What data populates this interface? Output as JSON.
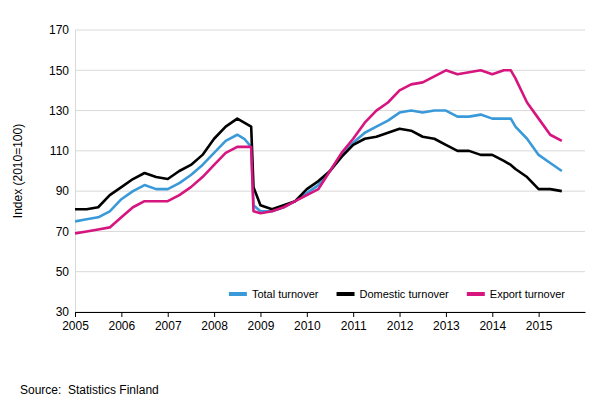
{
  "chart_data": {
    "type": "line",
    "y_label": "Index (2010=100)",
    "annotations": [
      "Source:  Statistics Finland"
    ],
    "x": [
      2005,
      2005.25,
      2005.5,
      2005.75,
      2006,
      2006.25,
      2006.5,
      2006.75,
      2007,
      2007.25,
      2007.5,
      2007.75,
      2008,
      2008.25,
      2008.5,
      2008.65,
      2008.8,
      2008.85,
      2009,
      2009.25,
      2009.5,
      2009.75,
      2010,
      2010.25,
      2010.5,
      2010.75,
      2011,
      2011.25,
      2011.5,
      2011.75,
      2012,
      2012.25,
      2012.5,
      2012.75,
      2013,
      2013.25,
      2013.5,
      2013.75,
      2014,
      2014.25,
      2014.4,
      2014.5,
      2014.75,
      2015,
      2015.25,
      2015.5
    ],
    "series": [
      {
        "name": "Total turnover",
        "color": "#3a9ad9",
        "values": [
          75,
          76,
          77,
          80,
          86,
          90,
          93,
          91,
          91,
          94,
          98,
          103,
          109,
          115,
          118,
          116,
          112,
          83,
          80,
          80,
          82,
          85,
          89,
          93,
          100,
          108,
          114,
          119,
          122,
          125,
          129,
          130,
          129,
          130,
          130,
          127,
          127,
          128,
          126,
          126,
          126,
          122,
          116,
          108,
          104,
          100
        ]
      },
      {
        "name": "Domestic turnover",
        "color": "#000000",
        "values": [
          81,
          81,
          82,
          88,
          92,
          96,
          99,
          97,
          96,
          100,
          103,
          108,
          116,
          122,
          126,
          124,
          122,
          92,
          83,
          81,
          83,
          85,
          91,
          95,
          100,
          107,
          113,
          116,
          117,
          119,
          121,
          120,
          117,
          116,
          113,
          110,
          110,
          108,
          108,
          105,
          103,
          101,
          97,
          91,
          91,
          90
        ]
      },
      {
        "name": "Export turnover",
        "color": "#d6157f",
        "values": [
          69,
          70,
          71,
          72,
          77,
          82,
          85,
          85,
          85,
          88,
          92,
          97,
          103,
          109,
          112,
          112,
          112,
          80,
          79,
          80,
          82,
          85,
          88,
          91,
          100,
          109,
          116,
          124,
          130,
          134,
          140,
          143,
          144,
          147,
          150,
          148,
          149,
          150,
          148,
          150,
          150,
          146,
          134,
          126,
          118,
          115
        ]
      }
    ],
    "xlim": [
      2005,
      2016
    ],
    "xticks": [
      2005,
      2006,
      2007,
      2008,
      2009,
      2010,
      2011,
      2012,
      2013,
      2014,
      2015
    ],
    "ylim": [
      30,
      170
    ],
    "yticks": [
      30,
      50,
      70,
      90,
      110,
      130,
      150,
      170
    ],
    "grid": true,
    "legend": "bottom"
  }
}
